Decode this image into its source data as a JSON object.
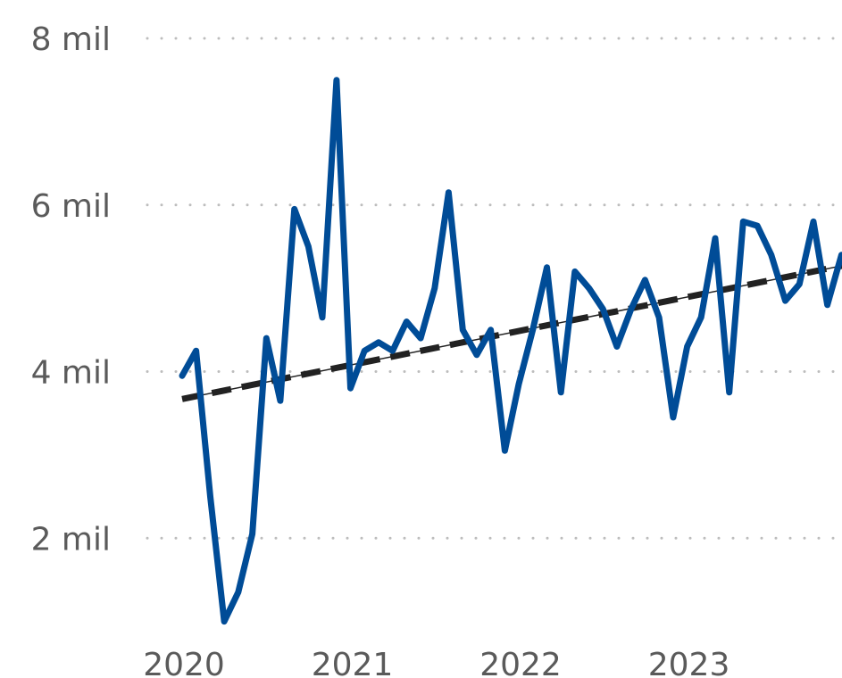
{
  "chart_data": {
    "type": "line",
    "title": "",
    "xlabel": "",
    "ylabel": "",
    "ylim": [
      0.3,
      8
    ],
    "xlim": [
      2020.0,
      2023.92
    ],
    "grid": true,
    "legend": "none",
    "y_ticks": [
      {
        "value": 2,
        "label": "2 mil"
      },
      {
        "value": 4,
        "label": "4 mil"
      },
      {
        "value": 6,
        "label": "6 mil"
      },
      {
        "value": 8,
        "label": "8 mil"
      }
    ],
    "x_ticks": [
      {
        "value": 2020,
        "label": "2020"
      },
      {
        "value": 2021,
        "label": "2021"
      },
      {
        "value": 2022,
        "label": "2022"
      },
      {
        "value": 2023,
        "label": "2023"
      }
    ],
    "series": [
      {
        "color": "#004c97",
        "x": [
          2020.0,
          2020.083,
          2020.167,
          2020.25,
          2020.333,
          2020.417,
          2020.5,
          2020.583,
          2020.667,
          2020.75,
          2020.833,
          2020.917,
          2021.0,
          2021.083,
          2021.167,
          2021.25,
          2021.333,
          2021.417,
          2021.5,
          2021.583,
          2021.667,
          2021.75,
          2021.833,
          2021.917,
          2022.0,
          2022.083,
          2022.167,
          2022.25,
          2022.333,
          2022.417,
          2022.5,
          2022.583,
          2022.667,
          2022.75,
          2022.833,
          2022.917,
          2023.0,
          2023.083,
          2023.167,
          2023.25,
          2023.333,
          2023.417,
          2023.5,
          2023.583,
          2023.667,
          2023.75,
          2023.833,
          2023.917
        ],
        "values": [
          3.95,
          4.25,
          2.5,
          1.0,
          1.35,
          2.05,
          4.4,
          3.65,
          5.95,
          5.5,
          4.65,
          7.5,
          3.8,
          4.25,
          4.35,
          4.25,
          4.6,
          4.4,
          5.0,
          6.15,
          4.5,
          4.2,
          4.5,
          3.05,
          3.85,
          4.5,
          5.25,
          3.75,
          5.2,
          5.0,
          4.75,
          4.3,
          4.75,
          5.1,
          4.65,
          3.45,
          4.3,
          4.65,
          5.6,
          3.75,
          5.8,
          5.75,
          5.4,
          4.85,
          5.05,
          5.8,
          4.8,
          5.4
        ]
      }
    ],
    "trend": {
      "color": "#222222",
      "x": [
        2020.0,
        2023.92
      ],
      "values": [
        3.67,
        5.27
      ]
    }
  }
}
